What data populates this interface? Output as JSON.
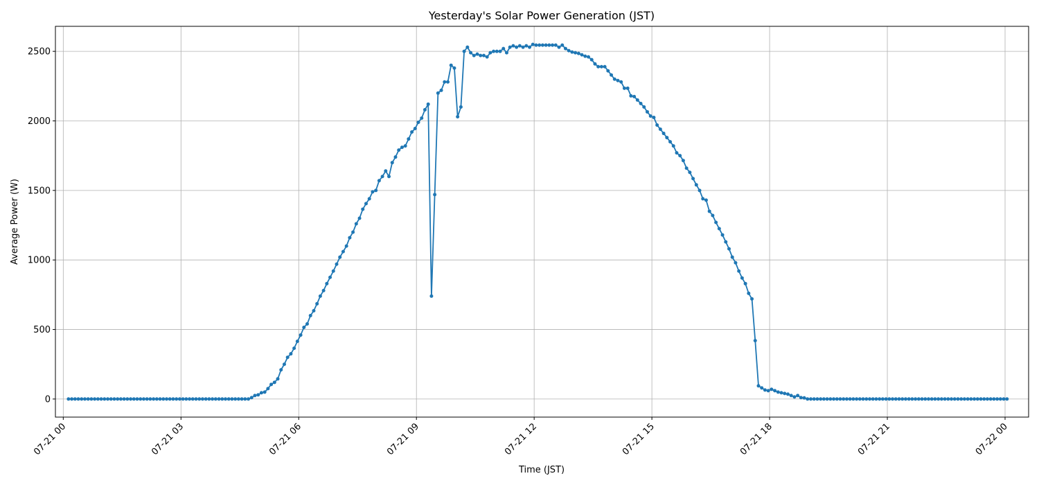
{
  "chart_data": {
    "type": "line",
    "title": "Yesterday's Solar Power Generation (JST)",
    "xlabel": "Time (JST)",
    "ylabel": "Average Power (W)",
    "xlim": [
      -0.2,
      24.6
    ],
    "ylim": [
      -130,
      2680
    ],
    "grid": true,
    "color": "#1f77b4",
    "x_ticks": [
      {
        "pos": 0,
        "label": "07-21 00"
      },
      {
        "pos": 3,
        "label": "07-21 03"
      },
      {
        "pos": 6,
        "label": "07-21 06"
      },
      {
        "pos": 9,
        "label": "07-21 09"
      },
      {
        "pos": 12,
        "label": "07-21 12"
      },
      {
        "pos": 15,
        "label": "07-21 15"
      },
      {
        "pos": 18,
        "label": "07-21 18"
      },
      {
        "pos": 21,
        "label": "07-21 21"
      },
      {
        "pos": 24,
        "label": "07-22 00"
      }
    ],
    "y_ticks": [
      0,
      500,
      1000,
      1500,
      2000,
      2500
    ],
    "series": [
      {
        "x_start_hours": 0.1333,
        "x_step_hours": 0.08333,
        "values": [
          0,
          0,
          0,
          0,
          0,
          0,
          0,
          0,
          0,
          0,
          0,
          0,
          0,
          0,
          0,
          0,
          0,
          0,
          0,
          0,
          0,
          0,
          0,
          0,
          0,
          0,
          0,
          0,
          0,
          0,
          0,
          0,
          0,
          0,
          0,
          0,
          0,
          0,
          0,
          0,
          0,
          0,
          0,
          0,
          0,
          0,
          0,
          0,
          0,
          0,
          0,
          0,
          0,
          0,
          0,
          0,
          10,
          25,
          30,
          45,
          50,
          75,
          105,
          120,
          145,
          210,
          250,
          300,
          325,
          365,
          415,
          460,
          515,
          540,
          600,
          635,
          685,
          740,
          780,
          830,
          875,
          920,
          970,
          1020,
          1060,
          1100,
          1160,
          1200,
          1260,
          1300,
          1365,
          1405,
          1440,
          1490,
          1500,
          1570,
          1600,
          1640,
          1600,
          1700,
          1740,
          1790,
          1810,
          1820,
          1870,
          1920,
          1945,
          1990,
          2020,
          2080,
          2120,
          740,
          1470,
          2200,
          2220,
          2280,
          2280,
          2400,
          2380,
          2030,
          2100,
          2500,
          2530,
          2490,
          2470,
          2480,
          2470,
          2470,
          2460,
          2490,
          2500,
          2500,
          2500,
          2520,
          2490,
          2530,
          2540,
          2530,
          2540,
          2530,
          2540,
          2530,
          2550,
          2545,
          2545,
          2545,
          2545,
          2545,
          2545,
          2545,
          2530,
          2545,
          2520,
          2505,
          2495,
          2490,
          2485,
          2475,
          2465,
          2460,
          2440,
          2410,
          2390,
          2390,
          2390,
          2360,
          2330,
          2300,
          2290,
          2280,
          2235,
          2235,
          2180,
          2175,
          2150,
          2125,
          2100,
          2065,
          2035,
          2025,
          1970,
          1940,
          1910,
          1880,
          1850,
          1820,
          1770,
          1750,
          1715,
          1660,
          1630,
          1585,
          1540,
          1500,
          1440,
          1430,
          1350,
          1320,
          1270,
          1225,
          1180,
          1130,
          1080,
          1020,
          980,
          920,
          870,
          830,
          760,
          720,
          420,
          95,
          80,
          65,
          60,
          70,
          60,
          50,
          45,
          40,
          35,
          25,
          15,
          25,
          10,
          8,
          0,
          0,
          0,
          0,
          0,
          0,
          0,
          0,
          0,
          0,
          0,
          0,
          0,
          0,
          0,
          0,
          0,
          0,
          0,
          0,
          0,
          0,
          0,
          0,
          0,
          0,
          0,
          0,
          0,
          0,
          0,
          0,
          0,
          0,
          0,
          0,
          0,
          0,
          0,
          0,
          0,
          0,
          0,
          0,
          0,
          0,
          0,
          0,
          0,
          0,
          0,
          0,
          0,
          0,
          0,
          0,
          0,
          0,
          0,
          0,
          0,
          0
        ]
      }
    ]
  }
}
